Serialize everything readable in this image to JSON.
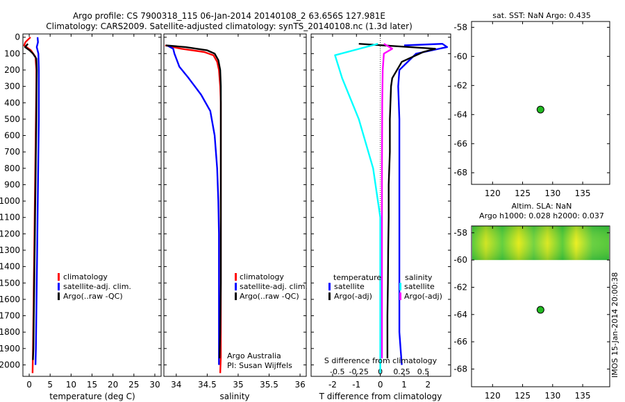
{
  "header": {
    "line1": "Argo profile: CS 7900318_115 06-Jan-2014 20140108_2 63.656S 127.981E",
    "line2": "Climatology: CARS2009. Satellite-adjusted climatology: synTS_20140108.nc (1.3d later)"
  },
  "colors": {
    "climatology": "#ff0000",
    "satellite": "#0000ff",
    "argo": "#000000",
    "sat_temp_diff": "#00ffff",
    "argo_sal_diff": "#ff00ff",
    "marker": "#22bb22"
  },
  "chart_data": [
    {
      "id": "temp",
      "type": "line",
      "xlabel": "temperature (deg C)",
      "xlim": [
        -1.5,
        31.5
      ],
      "ylim": [
        2070,
        -20
      ],
      "xticks": [
        0,
        5,
        10,
        15,
        20,
        25,
        30
      ],
      "xtick_labels": [
        "0",
        "5",
        "10",
        "15",
        "20",
        "25",
        "30"
      ],
      "yticks": [
        0,
        100,
        200,
        300,
        400,
        500,
        600,
        700,
        800,
        900,
        1000,
        1100,
        1200,
        1300,
        1400,
        1500,
        1600,
        1700,
        1800,
        1900,
        2000
      ],
      "ytick_labels": [
        "0",
        "100",
        "200",
        "300",
        "400",
        "500",
        "600",
        "700",
        "800",
        "900",
        "1000",
        "1100",
        "1200",
        "1300",
        "1400",
        "1500",
        "1600",
        "1700",
        "1800",
        "1900",
        "2000"
      ],
      "legend": [
        "climatology",
        "satellite-adj. clim.",
        "Argo(..raw -QC)"
      ],
      "series": [
        {
          "name": "climatology",
          "color": "#ff0000",
          "x": [
            0.3,
            -0.9,
            -1.2,
            0.4,
            1.5,
            1.7,
            1.7,
            1.6,
            1.5,
            1.4,
            1.3,
            1.2,
            1.1,
            1.0,
            0.9,
            0.8
          ],
          "y": [
            0,
            30,
            50,
            80,
            120,
            200,
            300,
            500,
            700,
            900,
            1100,
            1300,
            1500,
            1700,
            1900,
            2050
          ]
        },
        {
          "name": "satellite-adj. clim.",
          "color": "#0000ff",
          "x": [
            2.0,
            2.1,
            1.8,
            2.2,
            2.3,
            2.3,
            2.3,
            2.2,
            2.1,
            2.0,
            1.9,
            1.8,
            1.7,
            1.6,
            1.5
          ],
          "y": [
            0,
            30,
            60,
            100,
            200,
            300,
            500,
            700,
            900,
            1100,
            1300,
            1500,
            1700,
            1900,
            2000
          ]
        },
        {
          "name": "Argo(..raw -QC)",
          "color": "#000000",
          "x": [
            -0.3,
            -1.0,
            0.1,
            0.9,
            1.7,
            1.8,
            1.75,
            1.7,
            1.6,
            1.5,
            1.4,
            1.3,
            1.2,
            1.1,
            1.0,
            0.9
          ],
          "y": [
            40,
            60,
            80,
            100,
            130,
            200,
            300,
            500,
            700,
            900,
            1100,
            1300,
            1500,
            1700,
            1900,
            1970
          ]
        }
      ]
    },
    {
      "id": "sal",
      "type": "line",
      "xlabel": "salinity",
      "xlim": [
        33.8,
        36.1
      ],
      "ylim": [
        2070,
        -20
      ],
      "xticks": [
        34,
        34.5,
        35,
        35.5,
        36
      ],
      "xtick_labels": [
        "34",
        "34.5",
        "35",
        "35.5",
        "36"
      ],
      "legend": [
        "climatology",
        "satellite-adj. clim.",
        "Argo(..raw -QC)"
      ],
      "annotations": [
        "Argo Australia",
        "PI: Susan Wijffels"
      ],
      "series": [
        {
          "name": "climatology",
          "color": "#ff0000",
          "x": [
            33.82,
            34.08,
            34.45,
            34.6,
            34.66,
            34.69,
            34.71,
            34.72,
            34.72,
            34.72,
            34.72,
            34.72,
            34.72,
            34.72,
            34.72,
            34.72,
            34.71
          ],
          "y": [
            50,
            70,
            90,
            110,
            150,
            200,
            300,
            400,
            600,
            800,
            1000,
            1200,
            1400,
            1600,
            1800,
            1950,
            2050
          ]
        },
        {
          "name": "satellite-adj. clim.",
          "color": "#0000ff",
          "x": [
            33.85,
            33.95,
            33.97,
            34.05,
            34.2,
            34.4,
            34.55,
            34.62,
            34.66,
            34.68,
            34.69,
            34.69,
            34.69,
            34.69,
            34.69,
            34.69
          ],
          "y": [
            50,
            70,
            100,
            180,
            250,
            350,
            450,
            600,
            800,
            1000,
            1200,
            1400,
            1600,
            1800,
            1900,
            2000
          ]
        },
        {
          "name": "Argo(..raw -QC)",
          "color": "#000000",
          "x": [
            33.83,
            34.15,
            34.5,
            34.62,
            34.68,
            34.71,
            34.72,
            34.72,
            34.72,
            34.72,
            34.72,
            34.72,
            34.72,
            34.71,
            34.7
          ],
          "y": [
            50,
            60,
            80,
            100,
            140,
            200,
            300,
            400,
            600,
            800,
            1000,
            1200,
            1500,
            1800,
            1960
          ]
        }
      ]
    },
    {
      "id": "diff",
      "type": "line",
      "xlabel": "T difference from climatology",
      "top_axis_label": "S difference from climatology",
      "xlim": [
        -2.9,
        2.95
      ],
      "ylim": [
        2070,
        -20
      ],
      "xticks": [
        -2,
        -1,
        0,
        1,
        2
      ],
      "xtick_labels": [
        "-2",
        "-1",
        "0",
        "1",
        "2"
      ],
      "s_xticks": [
        -0.5,
        -0.25,
        0,
        0.25,
        0.5
      ],
      "s_xtick_labels": [
        "-0.5",
        "-0.25",
        "0",
        "0.25",
        "0.5"
      ],
      "s_scale": 3.6,
      "legend_titles": [
        "temperature",
        "salinity"
      ],
      "legend": [
        "satellite",
        "Argo(-adj)",
        "satellite",
        "Argo(-adj)"
      ],
      "series": [
        {
          "name": "satellite (T)",
          "color": "#0000ff",
          "x": [
            1.0,
            2.6,
            2.8,
            1.5,
            0.8,
            0.75,
            0.8,
            0.8,
            0.8,
            0.8,
            0.8,
            0.8,
            0.8,
            0.8,
            0.85,
            0.9
          ],
          "y": [
            50,
            40,
            60,
            100,
            200,
            300,
            500,
            700,
            900,
            1100,
            1300,
            1500,
            1700,
            1800,
            1900,
            2000
          ]
        },
        {
          "name": "Argo(-adj) (T)",
          "color": "#000000",
          "x": [
            -0.9,
            2.3,
            1.8,
            0.9,
            0.5,
            0.45,
            0.4,
            0.4,
            0.35,
            0.35,
            0.33,
            0.32,
            0.3,
            0.3
          ],
          "y": [
            40,
            70,
            90,
            150,
            250,
            300,
            500,
            700,
            900,
            1100,
            1300,
            1500,
            1700,
            1960
          ]
        },
        {
          "name": "satellite (S)",
          "color": "#00ffff",
          "x": [
            -0.1,
            -1.0,
            -1.9,
            -1.6,
            -0.9,
            -0.3,
            0.0,
            0.0
          ],
          "y": [
            40,
            75,
            110,
            250,
            500,
            800,
            1100,
            2050
          ]
        },
        {
          "name": "Argo(-adj) (S)",
          "color": "#ff00ff",
          "x": [
            0.15,
            0.5,
            0.15,
            0.1,
            0.08,
            0.07,
            0.07,
            0.07
          ],
          "y": [
            40,
            70,
            100,
            200,
            400,
            800,
            1200,
            1960
          ]
        }
      ]
    },
    {
      "id": "sst_map",
      "type": "scatter",
      "title": "sat. SST: NaN Argo: 0.435",
      "xlim": [
        116.5,
        139.5
      ],
      "ylim": [
        -68.8,
        -57.6
      ],
      "xticks": [
        120,
        125,
        130,
        135
      ],
      "xtick_labels": [
        "120",
        "125",
        "130",
        "135"
      ],
      "yticks": [
        -58,
        -60,
        -62,
        -64,
        -66,
        -68
      ],
      "ytick_labels": [
        "-58",
        "-60",
        "-62",
        "-64",
        "-66",
        "-68"
      ],
      "points": [
        {
          "x": 127.981,
          "y": -63.656
        }
      ]
    },
    {
      "id": "sla_map",
      "type": "scatter",
      "title": "Altim. SLA: NaN",
      "subtitle": "Argo h1000: 0.028 h2000: 0.037",
      "side_label": "IMOS 15-Jan-2014 20:00:38",
      "xlim": [
        116.5,
        139.5
      ],
      "ylim": [
        -69.3,
        -57.5
      ],
      "xticks": [
        120,
        125,
        130,
        135
      ],
      "xtick_labels": [
        "120",
        "125",
        "130",
        "135"
      ],
      "yticks": [
        -58,
        -60,
        -62,
        -64,
        -66,
        -68
      ],
      "ytick_labels": [
        "-58",
        "-60",
        "-62",
        "-64",
        "-66",
        "-68"
      ],
      "sla_band": [
        -60.0,
        -57.5
      ],
      "points": [
        {
          "x": 127.981,
          "y": -63.656
        }
      ]
    }
  ]
}
